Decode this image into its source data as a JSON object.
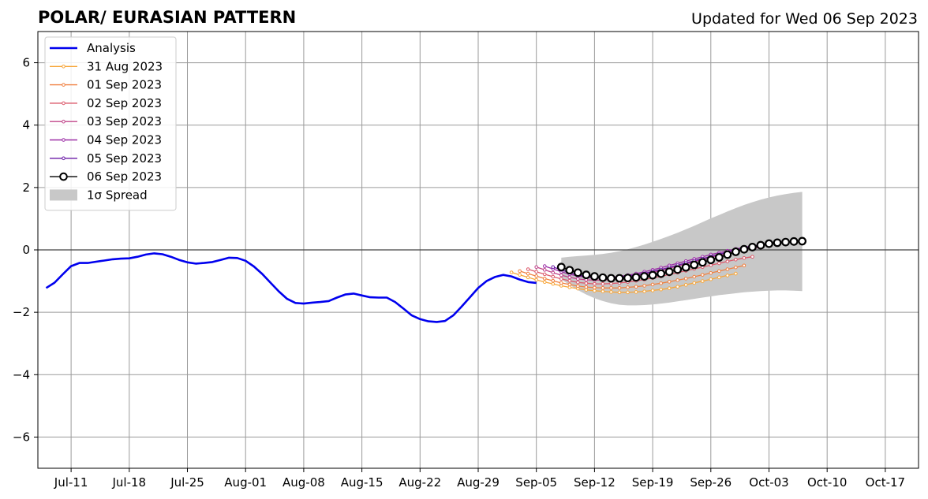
{
  "chart_data": {
    "type": "line",
    "title": "POLAR/ EURASIAN  PATTERN",
    "subtitle": "Updated for Wed 06 Sep 2023",
    "xlabel": "",
    "ylabel": "",
    "ylim": [
      -7,
      7
    ],
    "xlim": [
      "2023-07-07",
      "2023-10-21"
    ],
    "x_ticks": [
      "Jul-11",
      "Jul-18",
      "Jul-25",
      "Aug-01",
      "Aug-08",
      "Aug-15",
      "Aug-22",
      "Aug-29",
      "Sep-05",
      "Sep-12",
      "Sep-19",
      "Sep-26",
      "Oct-03",
      "Oct-10",
      "Oct-17"
    ],
    "x_tick_dates": [
      "2023-07-11",
      "2023-07-18",
      "2023-07-25",
      "2023-08-01",
      "2023-08-08",
      "2023-08-15",
      "2023-08-22",
      "2023-08-29",
      "2023-09-05",
      "2023-09-12",
      "2023-09-19",
      "2023-09-26",
      "2023-10-03",
      "2023-10-10",
      "2023-10-17"
    ],
    "y_ticks": [
      -6,
      -4,
      -2,
      0,
      2,
      4,
      6
    ],
    "y_tick_labels": [
      "−6",
      "−4",
      "−2",
      "0",
      "2",
      "4",
      "6"
    ],
    "grid": true,
    "legend_position": "top-left",
    "analysis": {
      "name": "Analysis",
      "color": "#0000ee",
      "start": "2023-07-08",
      "values": [
        -1.22,
        -1.05,
        -0.78,
        -0.52,
        -0.42,
        -0.42,
        -0.38,
        -0.34,
        -0.3,
        -0.28,
        -0.27,
        -0.22,
        -0.15,
        -0.11,
        -0.14,
        -0.22,
        -0.32,
        -0.4,
        -0.44,
        -0.42,
        -0.39,
        -0.32,
        -0.25,
        -0.26,
        -0.35,
        -0.53,
        -0.77,
        -1.05,
        -1.33,
        -1.57,
        -1.7,
        -1.72,
        -1.69,
        -1.67,
        -1.64,
        -1.53,
        -1.43,
        -1.4,
        -1.46,
        -1.52,
        -1.53,
        -1.53,
        -1.67,
        -1.88,
        -2.1,
        -2.22,
        -2.29,
        -2.31,
        -2.28,
        -2.1,
        -1.82,
        -1.52,
        -1.22,
        -1.0,
        -0.87,
        -0.8,
        -0.85,
        -0.95,
        -1.03,
        -1.06
      ]
    },
    "forecasts": [
      {
        "name": "31 Aug 2023",
        "color": "#f7a63a",
        "start": "2023-09-02",
        "values": [
          -0.72,
          -0.8,
          -0.88,
          -0.96,
          -1.03,
          -1.09,
          -1.15,
          -1.2,
          -1.24,
          -1.28,
          -1.31,
          -1.33,
          -1.35,
          -1.36,
          -1.36,
          -1.35,
          -1.33,
          -1.3,
          -1.27,
          -1.23,
          -1.18,
          -1.12,
          -1.06,
          -1.0,
          -0.94,
          -0.88,
          -0.82,
          -0.76
        ]
      },
      {
        "name": "01 Sep 2023",
        "color": "#f08040",
        "start": "2023-09-03",
        "values": [
          -0.68,
          -0.76,
          -0.84,
          -0.92,
          -0.99,
          -1.06,
          -1.11,
          -1.16,
          -1.19,
          -1.21,
          -1.22,
          -1.22,
          -1.22,
          -1.2,
          -1.18,
          -1.15,
          -1.11,
          -1.07,
          -1.02,
          -0.97,
          -0.92,
          -0.86,
          -0.8,
          -0.74,
          -0.68,
          -0.62,
          -0.56,
          -0.5
        ]
      },
      {
        "name": "02 Sep 2023",
        "color": "#dc5a6c",
        "start": "2023-09-04",
        "values": [
          -0.62,
          -0.7,
          -0.78,
          -0.86,
          -0.93,
          -0.99,
          -1.04,
          -1.07,
          -1.09,
          -1.09,
          -1.08,
          -1.06,
          -1.03,
          -0.99,
          -0.95,
          -0.9,
          -0.85,
          -0.79,
          -0.73,
          -0.67,
          -0.61,
          -0.55,
          -0.49,
          -0.43,
          -0.37,
          -0.31,
          -0.26,
          -0.22
        ]
      },
      {
        "name": "03 Sep 2023",
        "color": "#c0448a",
        "start": "2023-09-05",
        "values": [
          -0.55,
          -0.64,
          -0.73,
          -0.81,
          -0.88,
          -0.93,
          -0.96,
          -0.97,
          -0.97,
          -0.95,
          -0.92,
          -0.88,
          -0.83,
          -0.78,
          -0.72,
          -0.66,
          -0.59,
          -0.52,
          -0.45,
          -0.38,
          -0.31,
          -0.24,
          -0.17,
          -0.11,
          -0.05,
          0.01,
          0.05,
          0.08
        ]
      },
      {
        "name": "04 Sep 2023",
        "color": "#9c2ea6",
        "start": "2023-09-06",
        "values": [
          -0.52,
          -0.61,
          -0.7,
          -0.78,
          -0.84,
          -0.88,
          -0.9,
          -0.9,
          -0.88,
          -0.85,
          -0.81,
          -0.76,
          -0.7,
          -0.64,
          -0.57,
          -0.5,
          -0.43,
          -0.36,
          -0.29,
          -0.22,
          -0.15,
          -0.09,
          -0.03,
          0.03,
          0.08,
          0.13,
          0.17,
          0.2
        ]
      },
      {
        "name": "05 Sep 2023",
        "color": "#6a1aa6",
        "start": "2023-09-07",
        "values": [
          -0.55,
          -0.64,
          -0.73,
          -0.8,
          -0.86,
          -0.89,
          -0.9,
          -0.89,
          -0.87,
          -0.84,
          -0.8,
          -0.75,
          -0.69,
          -0.63,
          -0.56,
          -0.49,
          -0.42,
          -0.35,
          -0.28,
          -0.21,
          -0.14,
          -0.07,
          0.0,
          0.06,
          0.12,
          0.17,
          0.21,
          0.24
        ]
      },
      {
        "name": "06 Sep 2023",
        "color": "#000000",
        "start": "2023-09-08",
        "values": [
          -0.55,
          -0.65,
          -0.73,
          -0.8,
          -0.85,
          -0.89,
          -0.91,
          -0.91,
          -0.9,
          -0.88,
          -0.85,
          -0.81,
          -0.76,
          -0.7,
          -0.63,
          -0.56,
          -0.48,
          -0.4,
          -0.32,
          -0.24,
          -0.15,
          -0.06,
          0.02,
          0.09,
          0.15,
          0.2,
          0.23,
          0.25,
          0.27,
          0.28
        ]
      }
    ],
    "spread": {
      "name": "1σ Spread",
      "color": "#c8c8c8",
      "start": "2023-09-08",
      "upper": [
        -0.25,
        -0.22,
        -0.2,
        -0.18,
        -0.16,
        -0.13,
        -0.09,
        -0.04,
        0.02,
        0.09,
        0.17,
        0.26,
        0.35,
        0.45,
        0.55,
        0.66,
        0.77,
        0.89,
        1.01,
        1.12,
        1.23,
        1.34,
        1.44,
        1.53,
        1.61,
        1.68,
        1.74,
        1.79,
        1.83,
        1.86
      ],
      "lower": [
        -0.95,
        -1.12,
        -1.29,
        -1.43,
        -1.55,
        -1.64,
        -1.71,
        -1.76,
        -1.78,
        -1.78,
        -1.77,
        -1.75,
        -1.72,
        -1.69,
        -1.65,
        -1.61,
        -1.57,
        -1.53,
        -1.49,
        -1.45,
        -1.42,
        -1.39,
        -1.36,
        -1.34,
        -1.32,
        -1.31,
        -1.3,
        -1.3,
        -1.31,
        -1.32
      ]
    }
  },
  "legend": {
    "items": [
      {
        "label": "Analysis",
        "kind": "line",
        "color": "#0000ee"
      },
      {
        "label": "31 Aug 2023",
        "kind": "marker-line",
        "color": "#f7a63a"
      },
      {
        "label": "01 Sep 2023",
        "kind": "marker-line",
        "color": "#f08040"
      },
      {
        "label": "02 Sep 2023",
        "kind": "marker-line",
        "color": "#dc5a6c"
      },
      {
        "label": "03 Sep 2023",
        "kind": "marker-line",
        "color": "#c0448a"
      },
      {
        "label": "04 Sep 2023",
        "kind": "marker-line",
        "color": "#9c2ea6"
      },
      {
        "label": "05 Sep 2023",
        "kind": "marker-line",
        "color": "#6a1aa6"
      },
      {
        "label": "06 Sep 2023",
        "kind": "open-circle-line",
        "color": "#000000"
      },
      {
        "label": "1σ Spread",
        "kind": "patch",
        "color": "#c8c8c8"
      }
    ]
  }
}
